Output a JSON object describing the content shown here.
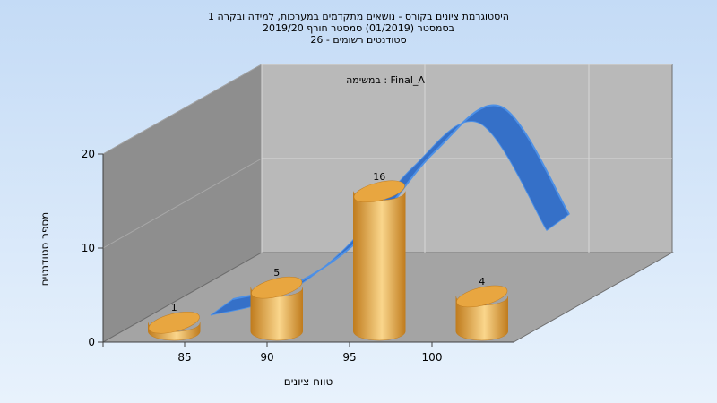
{
  "chart_data": {
    "type": "bar",
    "title_lines": [
      "היסטוגרמת ציונים בקורס - נושאים מתקדמים במערכות, למידה ובקרה 1",
      "בסמסטר  (01/2019)  סמסטר חורף 2019/20",
      "סטודנטים רשומים - 26"
    ],
    "annotation": "במשימה : Final_A",
    "xlabel": "טווח ציונים",
    "ylabel": "מספר סטודנטים",
    "categories": [
      "85",
      "90",
      "95",
      "100"
    ],
    "values": [
      1,
      5,
      16,
      4
    ],
    "y_ticks": [
      "0",
      "10",
      "20"
    ],
    "ylim": [
      0,
      20
    ],
    "curve_values": [
      0.5,
      2.5,
      8,
      17,
      22,
      10
    ],
    "colors": {
      "bar": "#E8A640",
      "bar_light": "#FAD68C",
      "bar_dark": "#C07C1E",
      "curve": "#3570C8",
      "curve_light": "#4D90E6",
      "left_wall": "#8E8E8E",
      "back_wall": "#B9B9B9",
      "floor": "#A4A4A4",
      "grid": "#D8D8D8",
      "background_top": "#C4DBF6",
      "background_bottom": "#E8F2FC"
    },
    "grid": true,
    "legend": "none"
  }
}
